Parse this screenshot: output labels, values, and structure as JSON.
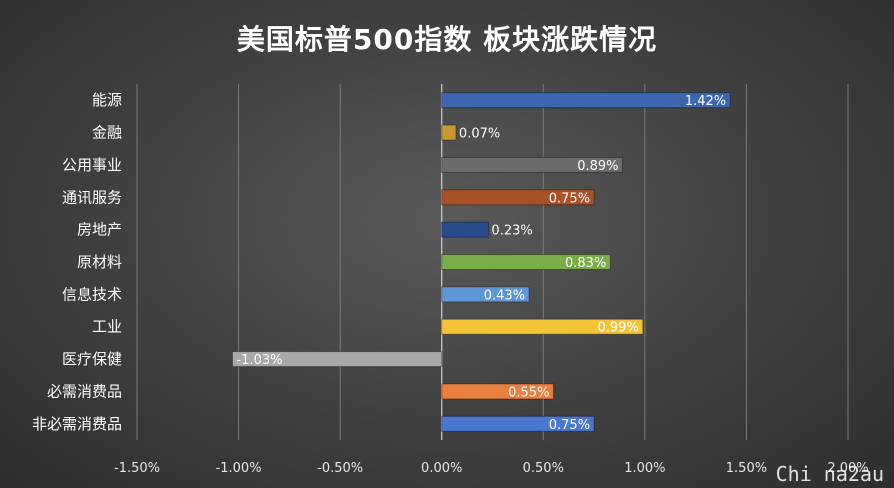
{
  "watermark": "Chi na2au",
  "chart_data": {
    "type": "bar",
    "orientation": "horizontal",
    "title": "美国标普500指数 板块涨跌情况",
    "categories": [
      "能源",
      "金融",
      "公用事业",
      "通讯服务",
      "房地产",
      "原材料",
      "信息技术",
      "工业",
      "医疗保健",
      "必需消费品",
      "非必需消费品"
    ],
    "values": [
      1.42,
      0.07,
      0.89,
      0.75,
      0.23,
      0.83,
      0.43,
      0.99,
      -1.03,
      0.55,
      0.75
    ],
    "data_labels": [
      "1.42%",
      "0.07%",
      "0.89%",
      "0.75%",
      "0.23%",
      "0.83%",
      "0.43%",
      "0.99%",
      "-1.03%",
      "0.55%",
      "0.75%"
    ],
    "colors": [
      "#3d66b1",
      "#c69a2c",
      "#6b6b6b",
      "#a8522a",
      "#2a4a8e",
      "#79ad48",
      "#5f97d6",
      "#f4c338",
      "#a9a9a9",
      "#e98040",
      "#4a78cf"
    ],
    "x_ticks": [
      -1.5,
      -1.0,
      -0.5,
      0.0,
      0.5,
      1.0,
      1.5,
      2.0
    ],
    "x_tick_labels": [
      "-1.50%",
      "-1.00%",
      "-0.50%",
      "0.00%",
      "0.50%",
      "1.00%",
      "1.50%",
      "2.00%"
    ],
    "xlim": [
      -1.5,
      2.0
    ],
    "grid": true,
    "legend": "none"
  }
}
